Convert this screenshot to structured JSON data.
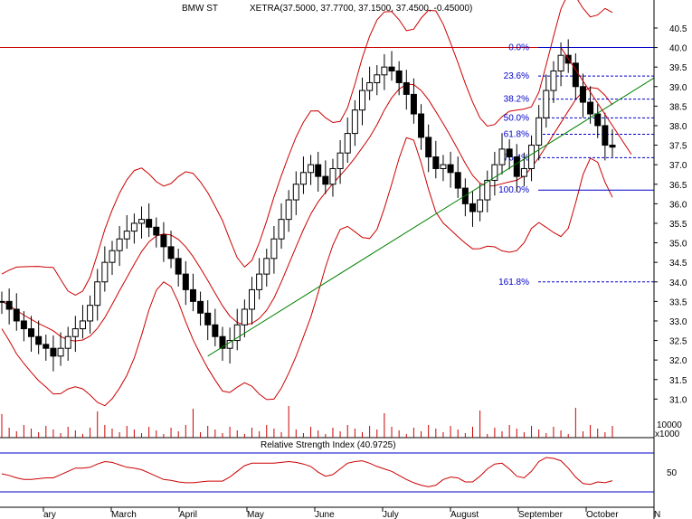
{
  "header": {
    "symbol": "BMW ST",
    "quote": "XETRA(37.5000, 37.7700, 37.1500, 37.4500, -0.45000)"
  },
  "rsi_panel": {
    "title": "Relative Strength Index (40.9725)",
    "tick_label": "50"
  },
  "volume_panel": {
    "tick_label": "10000",
    "unit_label": "x1000"
  },
  "colors": {
    "background": "#ffffff",
    "price_bars": "#000000",
    "bollinger": "#cc0000",
    "trendline": "#008000",
    "fibonacci_lines": "#0000cc",
    "fibonacci_labels": "#0000cc",
    "resistance": "#cc0000",
    "volume_bars": "#cc0000",
    "rsi_levels": "#0000cc"
  },
  "chart_data": {
    "type": "candlestick",
    "title": "BMW ST",
    "y_ticks": [
      "40.5",
      "40.0",
      "39.5",
      "39.0",
      "38.5",
      "38.0",
      "37.5",
      "37.0",
      "36.5",
      "36.0",
      "35.5",
      "35.0",
      "34.5",
      "34.0",
      "33.5",
      "33.0",
      "32.5",
      "32.0",
      "31.5",
      "31.0"
    ],
    "ylim": [
      30.8,
      40.8
    ],
    "x_ticks": [
      "ary",
      "March",
      "April",
      "May",
      "June",
      "July",
      "August",
      "September",
      "October",
      "N"
    ],
    "fibonacci": [
      {
        "label": "0.0%",
        "value": 40.0
      },
      {
        "label": "23.6%",
        "value": 39.27
      },
      {
        "label": "38.2%",
        "value": 38.68
      },
      {
        "label": "50.0%",
        "value": 38.2
      },
      {
        "label": "61.8%",
        "value": 37.78
      },
      {
        "label": "76.4%",
        "value": 37.18
      },
      {
        "label": "100.0%",
        "value": 36.35
      },
      {
        "label": "161.8%",
        "value": 34.0
      }
    ],
    "resistance_level": 40.0,
    "trendline": {
      "from": {
        "date": "May",
        "value": 32.1
      },
      "to": {
        "date": "October",
        "value": 37.5
      }
    },
    "close_series": [
      33.5,
      33.3,
      33.0,
      32.8,
      32.6,
      32.4,
      32.3,
      32.1,
      32.3,
      32.6,
      32.8,
      33.0,
      33.4,
      34.0,
      34.5,
      34.8,
      35.1,
      35.3,
      35.5,
      35.6,
      35.4,
      35.2,
      34.9,
      34.6,
      34.2,
      33.8,
      33.5,
      33.2,
      32.9,
      32.6,
      32.3,
      32.5,
      32.9,
      33.3,
      33.8,
      34.2,
      34.6,
      35.1,
      35.6,
      36.1,
      36.5,
      36.8,
      37.0,
      36.7,
      36.5,
      36.9,
      37.3,
      37.8,
      38.4,
      38.9,
      39.1,
      39.3,
      39.5,
      39.4,
      39.1,
      38.8,
      38.3,
      37.7,
      37.2,
      36.9,
      37.0,
      36.8,
      36.4,
      36.0,
      35.8,
      36.1,
      36.6,
      37.0,
      37.4,
      37.2,
      36.7,
      36.9,
      37.5,
      38.2,
      38.9,
      39.4,
      39.8,
      39.6,
      39.0,
      38.6,
      38.3,
      38.0,
      37.5,
      37.45
    ]
  }
}
